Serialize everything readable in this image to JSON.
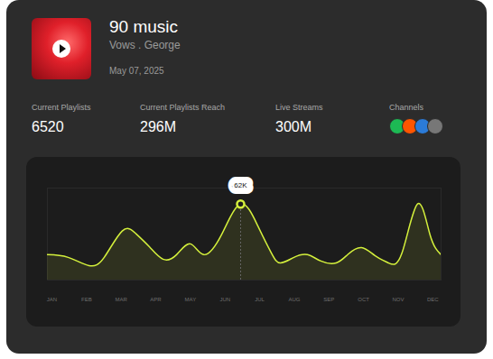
{
  "header": {
    "title": "90 music",
    "subtitle": "Vows . George",
    "date": "May 07, 2025"
  },
  "stats": [
    {
      "label": "Current Playlists",
      "value": "6520"
    },
    {
      "label": "Current Playlists Reach",
      "value": "296M"
    },
    {
      "label": "Live Streams",
      "value": "300M"
    },
    {
      "label": "Channels"
    }
  ],
  "chart_data": {
    "type": "line",
    "x": [
      -0.13,
      0.47,
      1.07,
      1.51,
      2.03,
      2.42,
      2.82,
      3.21,
      3.6,
      4.0,
      4.39,
      4.9,
      5.45,
      5.95,
      6.34,
      6.6,
      6.99,
      7.38,
      7.77,
      8.21,
      8.55,
      8.94,
      9.33,
      9.72,
      10.11,
      10.56,
      10.92,
      11.24
    ],
    "values": [
      20.7,
      18.5,
      11.8,
      18.5,
      40,
      38,
      27,
      17,
      20.7,
      29.5,
      20.7,
      37,
      62,
      44,
      22,
      14,
      18.5,
      20.7,
      15.5,
      14,
      21,
      26.5,
      19.9,
      14,
      22,
      62,
      37,
      20.7
    ],
    "color": "#d4f03c",
    "xlim": [
      -0.13,
      11.24
    ],
    "ylim": [
      0,
      75
    ],
    "xticks": [
      {
        "value": 0,
        "label": "JAN"
      },
      {
        "value": 1,
        "label": "FEB"
      },
      {
        "value": 2,
        "label": "MAR"
      },
      {
        "value": 3,
        "label": "APR"
      },
      {
        "value": 4,
        "label": "MAY"
      },
      {
        "value": 5,
        "label": "JUN"
      },
      {
        "value": 6,
        "label": "JUL"
      },
      {
        "value": 7,
        "label": "AUG"
      },
      {
        "value": 8,
        "label": "SEP"
      },
      {
        "value": 9,
        "label": "OCT"
      },
      {
        "value": 10,
        "label": "NOV"
      },
      {
        "value": 11,
        "label": "DEC"
      }
    ],
    "tick_labels": "x",
    "grid": false,
    "annotations": [
      {
        "x": 5.45,
        "y": 62,
        "text": "62K"
      }
    ]
  }
}
